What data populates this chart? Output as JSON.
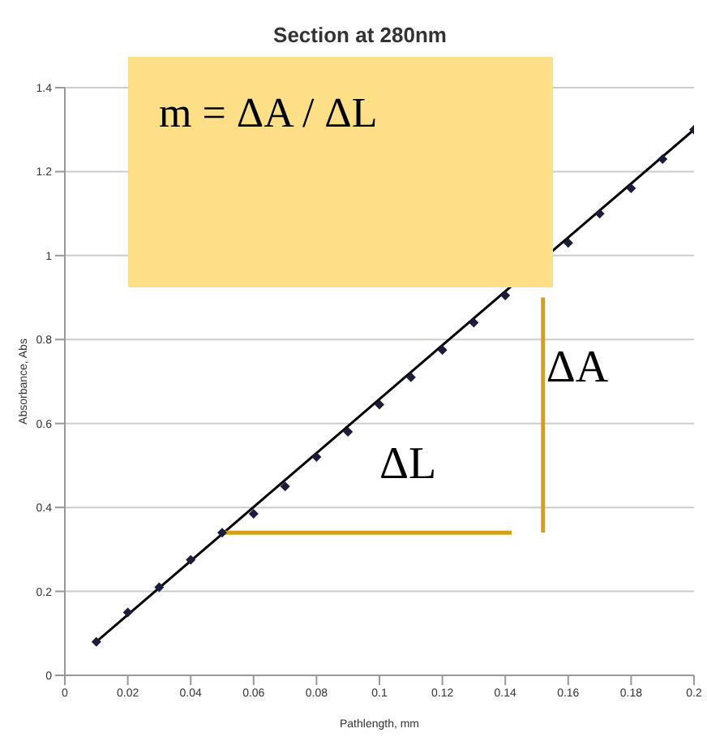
{
  "chart_data": {
    "type": "scatter",
    "title": "Section at 280nm",
    "xlabel": "Pathlength, mm",
    "ylabel": "Absorbance, Abs",
    "xlim": [
      0,
      0.2
    ],
    "xticks": [
      0,
      0.02,
      0.04,
      0.06,
      0.08,
      0.1,
      0.12,
      0.14,
      0.16,
      0.18,
      0.2
    ],
    "ylim": [
      0,
      1.4
    ],
    "yticks": [
      0,
      0.2,
      0.4,
      0.6,
      0.8,
      1,
      1.2,
      1.4
    ],
    "grid": "y",
    "series": [
      {
        "type": "scatter",
        "color": "#1c1c3c",
        "marker": "diamond",
        "x": [
          0.01,
          0.02,
          0.03,
          0.04,
          0.05,
          0.06,
          0.07,
          0.08,
          0.09,
          0.1,
          0.11,
          0.12,
          0.13,
          0.14,
          0.15,
          0.16,
          0.17,
          0.18,
          0.19,
          0.2
        ],
        "values": [
          0.08,
          0.15,
          0.21,
          0.275,
          0.34,
          0.385,
          0.45,
          0.52,
          0.58,
          0.645,
          0.71,
          0.775,
          0.84,
          0.905,
          null,
          1.03,
          1.1,
          1.16,
          1.23,
          1.3
        ]
      },
      {
        "type": "line",
        "color": "#000000",
        "marker": "none",
        "x": [
          0.01,
          0.2
        ],
        "values": [
          0.08,
          1.3
        ]
      },
      {
        "type": "line",
        "color": "#d4a017",
        "marker": "none",
        "x": [
          0.05,
          0.142
        ],
        "values": [
          0.34,
          0.34
        ]
      },
      {
        "type": "line",
        "color": "#d4a017",
        "marker": "none",
        "x": [
          0.152,
          0.152
        ],
        "values": [
          0.34,
          0.9
        ]
      }
    ],
    "annotations": [
      "m = ΔA / ΔL",
      "ΔA",
      "ΔL"
    ]
  }
}
